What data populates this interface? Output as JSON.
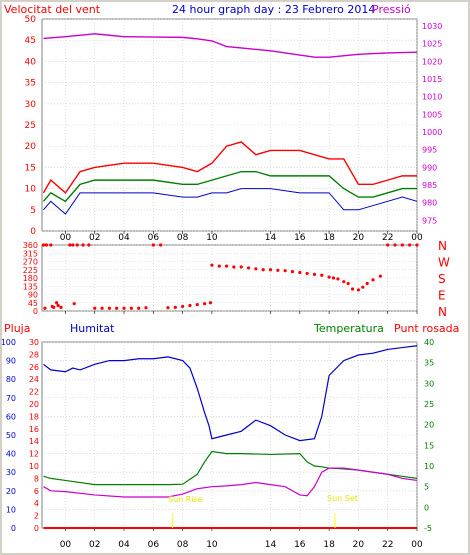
{
  "title": "24 hour graph day : 23 Febrero 2014",
  "labels": {
    "wind": "Velocitat del vent",
    "pressure": "Pressió",
    "rain": "Pluja",
    "humidity": "Humitat",
    "temperature": "Temperatura",
    "dewpoint": "Punt rosada",
    "sunrise": "Sun Rise",
    "sunset": "Sun Set"
  },
  "colors": {
    "wind_gust": "#ff0000",
    "wind_speed": "#008000",
    "wind_avg": "#0000cc",
    "pressure": "#cc00cc",
    "direction": "#ff0000",
    "rain": "#ff0000",
    "humidity": "#0000cc",
    "temperature": "#008000",
    "dewpoint": "#cc00cc",
    "sun": "#ffff00"
  },
  "x_ticks": [
    "00",
    "02",
    "04",
    "06",
    "08",
    "10",
    "14",
    "16",
    "18",
    "20",
    "22",
    "00"
  ],
  "chart_data": [
    {
      "type": "line",
      "title": "24 hour graph day : 23 Febrero 2014",
      "x_unit": "hour",
      "left_axis": {
        "label": "Velocitat del vent",
        "ylim": [
          0,
          50
        ],
        "ticks": [
          0,
          5,
          10,
          15,
          20,
          25,
          30,
          35,
          40,
          45,
          50
        ]
      },
      "right_axis": {
        "label": "Pressió",
        "ylim": [
          972,
          1032
        ],
        "ticks": [
          975,
          980,
          985,
          990,
          995,
          1000,
          1005,
          1010,
          1015,
          1020,
          1025,
          1030
        ]
      },
      "grid": true,
      "series": [
        {
          "name": "Pressió",
          "axis": "right",
          "x": [
            -1.5,
            0,
            2,
            3,
            4,
            6,
            8,
            9,
            10,
            11,
            12,
            14,
            16,
            17,
            18,
            20,
            22,
            24
          ],
          "y": [
            1026.5,
            1027,
            1027.8,
            1027.4,
            1027,
            1026.9,
            1026.8,
            1026.4,
            1025.8,
            1024.2,
            1023.8,
            1023,
            1021.8,
            1021.2,
            1021.2,
            1022,
            1022.4,
            1022.6
          ]
        },
        {
          "axis": "left",
          "x": [
            -1.5,
            -1,
            0,
            1,
            2,
            4,
            6,
            8,
            9,
            10,
            11,
            12,
            13,
            14,
            16,
            18,
            19,
            20,
            21,
            22,
            23,
            24
          ],
          "y": [
            9,
            12,
            9,
            14,
            15,
            16,
            16,
            15,
            14,
            16,
            20,
            21,
            18,
            19,
            19,
            17,
            17,
            11,
            11,
            12,
            13,
            13
          ]
        },
        {
          "axis": "left",
          "x": [
            -1.5,
            -1,
            0,
            1,
            2,
            4,
            6,
            8,
            9,
            10,
            11,
            12,
            13,
            14,
            16,
            18,
            19,
            20,
            21,
            22,
            23,
            24
          ],
          "y": [
            7,
            9,
            7,
            11,
            12,
            12,
            12,
            11,
            11,
            12,
            13,
            14,
            14,
            13,
            13,
            13,
            10,
            8,
            8,
            9,
            10,
            10
          ]
        },
        {
          "axis": "left",
          "x": [
            -1.5,
            -1,
            0,
            1,
            2,
            4,
            6,
            8,
            9,
            10,
            11,
            12,
            13,
            14,
            16,
            18,
            19,
            20,
            21,
            22,
            23,
            24
          ],
          "y": [
            5,
            7,
            4,
            9,
            9,
            9,
            9,
            8,
            8,
            9,
            9,
            10,
            10,
            10,
            9,
            9,
            5,
            5,
            6,
            7,
            8,
            7
          ]
        }
      ]
    },
    {
      "type": "scatter",
      "ylim": [
        0,
        360
      ],
      "left_ticks": [
        0,
        45,
        90,
        135,
        180,
        225,
        270,
        315,
        360
      ],
      "left_tick_labels": [
        "0",
        "45",
        "90",
        "135",
        "180",
        "225",
        "270",
        "315",
        "360"
      ],
      "right_ticks": [
        360,
        270,
        180,
        90,
        0
      ],
      "right_tick_labels": [
        "N",
        "W",
        "S",
        "E",
        "N"
      ],
      "points_x": [
        -1.5,
        -1.3,
        -1,
        -0.8,
        -0.5,
        0.5,
        0.8,
        1.2,
        1.6,
        2,
        2.5,
        3,
        3.5,
        4,
        4.5,
        5,
        5.5,
        6,
        6.5,
        7,
        7.5,
        8,
        8.5,
        9,
        9.5,
        9.9,
        10,
        10.5,
        11,
        11.5,
        12,
        12.5,
        13,
        13.5,
        14,
        14.5,
        15,
        15.5,
        16,
        16.5,
        17,
        17.5,
        18,
        18.3,
        18.6,
        19,
        19.3,
        19.6,
        20,
        20.3,
        20.6,
        21,
        21.5,
        22,
        22.5,
        23,
        23.5,
        24
      ],
      "points_y": [
        360,
        360,
        360,
        20,
        30,
        360,
        360,
        360,
        360,
        15,
        15,
        15,
        15,
        15,
        15,
        15,
        18,
        360,
        360,
        18,
        20,
        25,
        30,
        35,
        40,
        45,
        250,
        245,
        245,
        240,
        240,
        235,
        230,
        225,
        225,
        222,
        220,
        215,
        210,
        205,
        200,
        195,
        185,
        180,
        175,
        160,
        150,
        120,
        115,
        130,
        150,
        170,
        190,
        360,
        360,
        360,
        360,
        360
      ],
      "extra_points_x": [
        -1.4,
        -0.9,
        -0.6,
        -0.3,
        0.3,
        0.6
      ],
      "extra_points_y": [
        15,
        25,
        45,
        20,
        360,
        40
      ]
    },
    {
      "type": "line",
      "left_axis": {
        "label": "Pluja",
        "ylim": [
          0,
          100
        ],
        "ticks": [
          0,
          10,
          20,
          30,
          40,
          50,
          60,
          70,
          80,
          90,
          100
        ]
      },
      "left2_axis": {
        "label": "Humitat",
        "ylim": [
          0,
          30
        ],
        "ticks": [
          0,
          2,
          4,
          6,
          8,
          10,
          12,
          14,
          16,
          18,
          20,
          22,
          24,
          26,
          28,
          30
        ]
      },
      "right_axis": {
        "ylim": [
          -5,
          40
        ],
        "ticks": [
          -5,
          0,
          5,
          10,
          15,
          20,
          25,
          30,
          35,
          40
        ]
      },
      "grid": true,
      "series": [
        {
          "name": "Humitat",
          "axis": "left",
          "x": [
            -1.5,
            -1,
            0,
            0.5,
            1,
            2,
            3,
            4,
            5,
            6,
            7,
            8,
            8.5,
            9,
            9.5,
            9.8,
            10,
            11,
            12,
            13,
            14,
            15,
            16,
            17,
            17.5,
            18,
            19,
            20,
            21,
            22,
            23,
            24
          ],
          "y": [
            88,
            85,
            84,
            86,
            85,
            88,
            90,
            90,
            91,
            91,
            92,
            90,
            86,
            75,
            62,
            55,
            48,
            50,
            52,
            58,
            55,
            50,
            47,
            48,
            60,
            82,
            90,
            93,
            94,
            96,
            97,
            98
          ]
        },
        {
          "name": "Temperatura",
          "axis": "right",
          "x": [
            -1.5,
            -1,
            0,
            2,
            4,
            6,
            7,
            8,
            9,
            9.5,
            10,
            11,
            12,
            14,
            16,
            16.5,
            17,
            17.5,
            18,
            19,
            20,
            22,
            23,
            24
          ],
          "y": [
            7.5,
            7,
            6.5,
            5.5,
            5.5,
            5.5,
            5.5,
            5.6,
            8,
            11,
            13.5,
            13,
            13,
            12.8,
            13,
            11,
            10,
            9.8,
            9.5,
            9.3,
            9,
            8,
            7.5,
            7
          ]
        },
        {
          "name": "Punt rosada",
          "axis": "right",
          "x": [
            -1.5,
            -1,
            0,
            2,
            4,
            6,
            7,
            8,
            9,
            10,
            11,
            12,
            13,
            14,
            15,
            16,
            16.5,
            17,
            17.5,
            18,
            19,
            20,
            22,
            23,
            24
          ],
          "y": [
            5,
            4,
            3.8,
            3,
            2.5,
            2.5,
            2.5,
            3.2,
            4.5,
            5,
            5.2,
            5.5,
            6,
            5.5,
            5,
            3,
            2.8,
            5,
            8.5,
            9.5,
            9.5,
            9,
            8,
            7,
            6.5
          ]
        },
        {
          "name": "Pluja",
          "axis": "left",
          "x": [
            -1.5,
            24
          ],
          "y": [
            0,
            0
          ]
        }
      ],
      "annotations": [
        {
          "text": "Sun Rise",
          "x": 7.3
        },
        {
          "text": "Sun Set",
          "x": 18.4
        }
      ]
    }
  ]
}
